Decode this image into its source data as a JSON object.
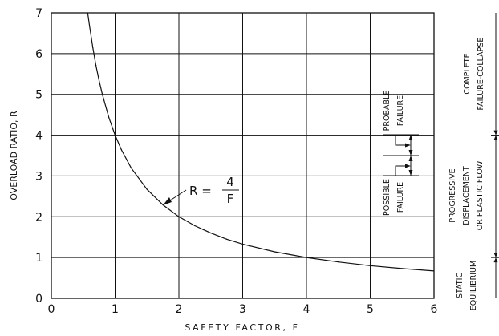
{
  "chart_data": {
    "type": "line",
    "title": "",
    "xlabel": "SAFETY FACTOR, F",
    "ylabel": "OVERLOAD RATIO, R",
    "xlim": [
      0,
      6
    ],
    "ylim": [
      0,
      7
    ],
    "x_ticks": [
      "0",
      "1",
      "2",
      "3",
      "4",
      "5",
      "6"
    ],
    "y_ticks": [
      "0",
      "1",
      "2",
      "3",
      "4",
      "5",
      "6",
      "7"
    ],
    "grid": true,
    "series": [
      {
        "function": "R = 4 / F",
        "x": [
          0.57,
          0.6,
          0.65,
          0.7,
          0.75,
          0.8,
          0.9,
          1.0,
          1.1,
          1.25,
          1.5,
          1.75,
          2.0,
          2.25,
          2.5,
          2.75,
          3.0,
          3.5,
          4.0,
          4.5,
          5.0,
          5.5,
          6.0
        ],
        "y": [
          7.0,
          6.67,
          6.15,
          5.71,
          5.33,
          5.0,
          4.44,
          4.0,
          3.64,
          3.2,
          2.67,
          2.29,
          2.0,
          1.78,
          1.6,
          1.45,
          1.33,
          1.14,
          1.0,
          0.89,
          0.8,
          0.73,
          0.67
        ]
      }
    ],
    "annotations": {
      "formula_lhs": "R =",
      "formula_numerator": "4",
      "formula_denominator": "F",
      "probable_failure": [
        "PROBABLE",
        "FAILURE"
      ],
      "possible_failure": [
        "POSSIBLE",
        "FAILURE"
      ]
    },
    "zones": [
      {
        "lines": [
          "COMPLETE",
          "FAILURE-COLLAPSE"
        ],
        "from": 4,
        "to": 7
      },
      {
        "lines": [
          "PROGRESSIVE",
          "DISPLACEMENT",
          "OR PLASTIC FLOW"
        ],
        "from": 1,
        "to": 4
      },
      {
        "lines": [
          "STATIC",
          "EQUILIBRIUM"
        ],
        "from": 0,
        "to": 1
      }
    ]
  }
}
